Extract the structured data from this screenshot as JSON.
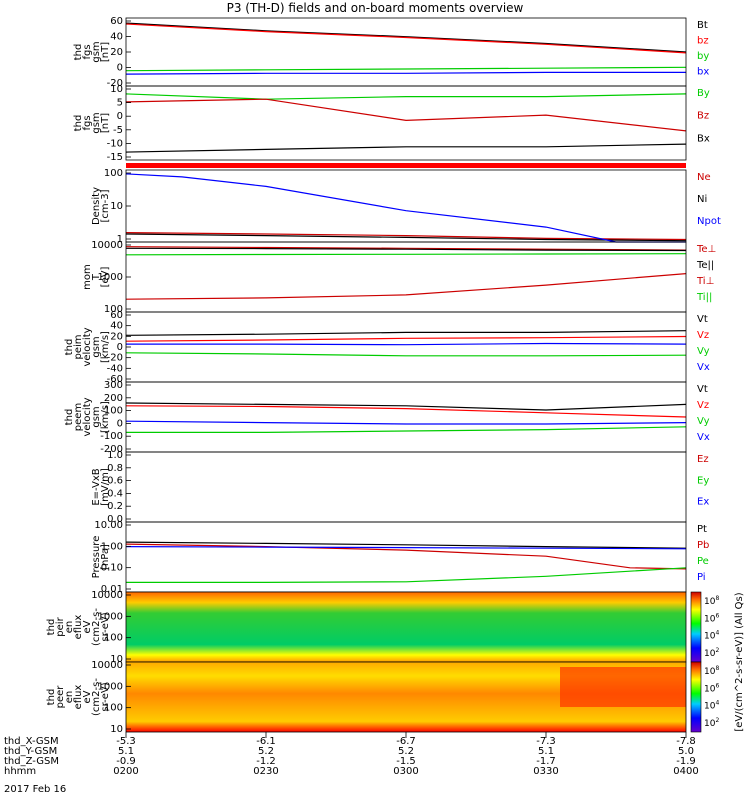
{
  "title": "P3 (TH-D) fields and on-board moments overview",
  "date": "2017 Feb 16",
  "chart_data": [
    {
      "type": "line",
      "id": "fgs_gsm",
      "ylabel": [
        "thd",
        "fgs",
        "gsm",
        "[nT]"
      ],
      "ylim": [
        -20,
        60
      ],
      "yticks": [
        "60",
        "40",
        "20",
        "0",
        "-20"
      ],
      "series": [
        {
          "name": "Bt",
          "color": "#000000",
          "x": [
            0,
            0.5,
            1,
            1.5,
            2
          ],
          "values": [
            54,
            45,
            38,
            30,
            20
          ]
        },
        {
          "name": "bz",
          "color": "#ff0000",
          "x": [
            0,
            0.5,
            1,
            1.5,
            2
          ],
          "values": [
            53,
            44,
            37,
            29,
            19
          ]
        },
        {
          "name": "by",
          "color": "#00cc00",
          "x": [
            0,
            0.5,
            1,
            1.5,
            2
          ],
          "values": [
            -2,
            -1,
            0,
            1,
            2
          ]
        },
        {
          "name": "bx",
          "color": "#0000ff",
          "x": [
            0,
            0.5,
            1,
            1.5,
            2
          ],
          "values": [
            -6,
            -5,
            -5,
            -4,
            -4
          ]
        }
      ]
    },
    {
      "type": "line",
      "id": "fgs_gsm_detail",
      "ylabel": [
        "thd",
        "fgs",
        "gsm",
        "[nT]"
      ],
      "ylim": [
        -17,
        11
      ],
      "yticks": [
        "10",
        "5",
        "0",
        "-5",
        "-10",
        "-15"
      ],
      "series": [
        {
          "name": "By",
          "color": "#00cc00",
          "x": [
            0,
            0.5,
            1,
            1.5,
            2
          ],
          "values": [
            8,
            6,
            7,
            7,
            8
          ]
        },
        {
          "name": "Bz",
          "color": "#cc0000",
          "x": [
            0,
            0.5,
            1,
            1.5,
            2
          ],
          "values": [
            5,
            6,
            -2,
            0,
            -6
          ]
        },
        {
          "name": "Bx",
          "color": "#000000",
          "x": [
            0,
            0.5,
            1,
            1.5,
            2
          ],
          "values": [
            -14,
            -13,
            -12,
            -12,
            -11
          ]
        }
      ]
    },
    {
      "type": "line",
      "id": "density",
      "ylabel": [
        "Density",
        "[cm-3]"
      ],
      "yscale": "log",
      "ylim": [
        1,
        200
      ],
      "yticks": [
        "100",
        "10",
        "1"
      ],
      "series": [
        {
          "name": "Ne",
          "color": "#cc0000",
          "x": [
            0,
            0.5,
            1,
            1.5,
            2
          ],
          "values": [
            2.0,
            1.8,
            1.6,
            1.3,
            1.2
          ]
        },
        {
          "name": "Ni",
          "color": "#000000",
          "x": [
            0,
            0.5,
            1,
            1.5,
            2
          ],
          "values": [
            1.8,
            1.6,
            1.4,
            1.2,
            1.1
          ]
        },
        {
          "name": "Npot",
          "color": "#0000ff",
          "x": [
            0,
            0.2,
            0.5,
            1,
            1.5,
            1.75,
            2
          ],
          "values": [
            150,
            120,
            60,
            10,
            3,
            1,
            1
          ]
        }
      ]
    },
    {
      "type": "line",
      "id": "temperature",
      "ylabel": [
        "mom",
        "T",
        "[eV]"
      ],
      "yscale": "log",
      "ylim": [
        30,
        12000
      ],
      "yticks": [
        "10000",
        "1000",
        "100"
      ],
      "series": [
        {
          "name": "Te⊥",
          "color": "#cc0000",
          "x": [
            0,
            0.5,
            1,
            1.5,
            2
          ],
          "values": [
            8000,
            7500,
            7000,
            6500,
            6000
          ]
        },
        {
          "name": "Te||",
          "color": "#000000",
          "x": [
            0,
            0.5,
            1,
            1.5,
            2
          ],
          "values": [
            7000,
            6800,
            6500,
            6000,
            5800
          ]
        },
        {
          "name": "Ti⊥",
          "color": "#cc0000",
          "x": [
            0,
            0.5,
            1,
            1.5,
            2
          ],
          "values": [
            90,
            100,
            130,
            300,
            800
          ]
        },
        {
          "name": "Ti||",
          "color": "#00cc00",
          "x": [
            0,
            0.5,
            1,
            1.5,
            2
          ],
          "values": [
            4000,
            4100,
            4200,
            4300,
            4400
          ]
        }
      ]
    },
    {
      "type": "line",
      "id": "peim_velocity",
      "ylabel": [
        "thd",
        "peim",
        "velocity",
        "gsm",
        "[km/s]"
      ],
      "ylim": [
        -60,
        60
      ],
      "yticks": [
        "60",
        "40",
        "20",
        "0",
        "-20",
        "-40",
        "-60"
      ],
      "series": [
        {
          "name": "Vt",
          "color": "#000000",
          "x": [
            0,
            0.5,
            1,
            1.5,
            2
          ],
          "values": [
            20,
            22,
            25,
            25,
            28
          ]
        },
        {
          "name": "Vz",
          "color": "#ff0000",
          "x": [
            0,
            0.5,
            1,
            1.5,
            2
          ],
          "values": [
            10,
            12,
            15,
            16,
            18
          ]
        },
        {
          "name": "Vy",
          "color": "#00cc00",
          "x": [
            0,
            0.5,
            1,
            1.5,
            2
          ],
          "values": [
            -10,
            -12,
            -15,
            -15,
            -14
          ]
        },
        {
          "name": "Vx",
          "color": "#0000ff",
          "x": [
            0,
            0.5,
            1,
            1.5,
            2
          ],
          "values": [
            5,
            5,
            4,
            6,
            5
          ]
        }
      ]
    },
    {
      "type": "line",
      "id": "peem_velocity",
      "ylabel": [
        "thd",
        "peem",
        "velocity",
        "gsm",
        "[km/s]"
      ],
      "ylim": [
        -200,
        300
      ],
      "yticks": [
        "300",
        "200",
        "100",
        "0",
        "-100",
        "-200"
      ],
      "series": [
        {
          "name": "Vt",
          "color": "#000000",
          "x": [
            0,
            0.5,
            1,
            1.5,
            2
          ],
          "values": [
            150,
            140,
            130,
            100,
            140
          ]
        },
        {
          "name": "Vz",
          "color": "#ff0000",
          "x": [
            0,
            0.5,
            1,
            1.5,
            2
          ],
          "values": [
            130,
            125,
            110,
            80,
            50
          ]
        },
        {
          "name": "Vy",
          "color": "#00cc00",
          "x": [
            0,
            0.5,
            1,
            1.5,
            2
          ],
          "values": [
            -60,
            -60,
            -50,
            -40,
            -20
          ]
        },
        {
          "name": "Vx",
          "color": "#0000ff",
          "x": [
            0,
            0.5,
            1,
            1.5,
            2
          ],
          "values": [
            20,
            10,
            0,
            0,
            10
          ]
        }
      ]
    },
    {
      "type": "line",
      "id": "efield",
      "ylabel": [
        "E=-VxB",
        "[mV/m]"
      ],
      "ylim": [
        0,
        1
      ],
      "yticks": [
        "1.0",
        "0.8",
        "0.6",
        "0.4",
        "0.2",
        "0.0"
      ],
      "series": [
        {
          "name": "Ez",
          "color": "#cc0000",
          "x": [],
          "values": []
        },
        {
          "name": "Ey",
          "color": "#00cc00",
          "x": [],
          "values": []
        },
        {
          "name": "Ex",
          "color": "#0000ff",
          "x": [],
          "values": []
        }
      ]
    },
    {
      "type": "line",
      "id": "pressure",
      "ylabel": [
        "Pressure",
        "[nPa]"
      ],
      "yscale": "log",
      "ylim": [
        0.005,
        15
      ],
      "yticks": [
        "10.00",
        "1.00",
        "0.10",
        "0.01"
      ],
      "series": [
        {
          "name": "Pt",
          "color": "#000000",
          "x": [
            0,
            0.5,
            1,
            1.5,
            2
          ],
          "values": [
            1.5,
            1.3,
            1.1,
            0.9,
            0.75
          ]
        },
        {
          "name": "Pb",
          "color": "#cc0000",
          "x": [
            0,
            0.5,
            1,
            1.5,
            1.8,
            2
          ],
          "values": [
            1.2,
            0.9,
            0.6,
            0.3,
            0.08,
            0.07
          ]
        },
        {
          "name": "Pe",
          "color": "#00cc00",
          "x": [
            0,
            0.5,
            1,
            1.5,
            2
          ],
          "values": [
            0.015,
            0.015,
            0.016,
            0.03,
            0.08
          ]
        },
        {
          "name": "Pi",
          "color": "#0000ff",
          "x": [
            0,
            0.5,
            1,
            1.5,
            2
          ],
          "values": [
            0.9,
            0.85,
            0.8,
            0.75,
            0.7
          ]
        }
      ]
    },
    {
      "type": "heatmap",
      "id": "peir_eflux",
      "ylabel": [
        "thd",
        "peir",
        "en",
        "eflux",
        "eV",
        "(cm2-s-",
        "sr-eV)"
      ],
      "yscale": "log",
      "yticks": [
        "10000",
        "1000",
        "100",
        "10"
      ],
      "colorbar_label": "[eV/(cm^2-s-sr-eV)] (All Qs)",
      "colorbar_ticks": [
        "10^8",
        "10^6",
        "10^4",
        "10^2"
      ]
    },
    {
      "type": "heatmap",
      "id": "peer_eflux",
      "ylabel": [
        "thd",
        "peer",
        "en",
        "eflux",
        "eV",
        "(cm2-s-",
        "sr-eV)"
      ],
      "yscale": "log",
      "yticks": [
        "10000",
        "1000",
        "100",
        "10"
      ],
      "colorbar_label": "[eV/(cm^2-s-sr-eV)] (All Qs)",
      "colorbar_ticks": [
        "10^8",
        "10^6",
        "10^4",
        "10^2"
      ]
    }
  ],
  "x_axis": {
    "rows": [
      {
        "label": "thd_X-GSM",
        "values": [
          "-5.3",
          "-6.1",
          "-6.7",
          "-7.3",
          "-7.8"
        ]
      },
      {
        "label": "thd_Y-GSM",
        "values": [
          "5.1",
          "5.2",
          "5.2",
          "5.1",
          "5.0"
        ]
      },
      {
        "label": "thd_Z-GSM",
        "values": [
          "-0.9",
          "-1.2",
          "-1.5",
          "-1.7",
          "-1.9"
        ]
      },
      {
        "label": "hhmm",
        "values": [
          "0200",
          "0230",
          "0300",
          "0330",
          "0400"
        ]
      }
    ]
  }
}
